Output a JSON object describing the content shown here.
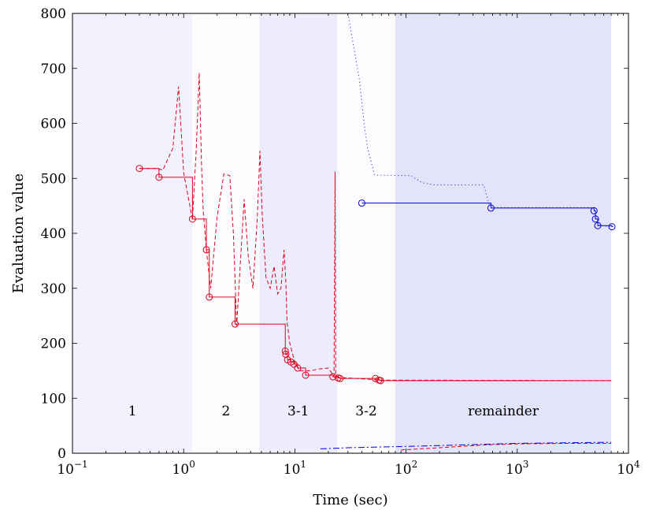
{
  "chart_data": {
    "type": "line",
    "xscale": "log",
    "xlim": [
      0.1,
      10000
    ],
    "ylim": [
      0,
      800
    ],
    "xlabel": "Time (sec)",
    "ylabel": "Evaluation value",
    "x_ticks": [
      {
        "value": 0.1,
        "base": "10",
        "exp": "−1"
      },
      {
        "value": 1,
        "base": "10",
        "exp": "0"
      },
      {
        "value": 10,
        "base": "10",
        "exp": "1"
      },
      {
        "value": 100,
        "base": "10",
        "exp": "2"
      },
      {
        "value": 1000,
        "base": "10",
        "exp": "3"
      },
      {
        "value": 10000,
        "base": "10",
        "exp": "4"
      }
    ],
    "y_ticks": [
      0,
      100,
      200,
      300,
      400,
      500,
      600,
      700,
      800
    ],
    "phases": [
      {
        "label": "1",
        "x0": 0.1,
        "x1": 1.2,
        "color": "#f2f2ff"
      },
      {
        "label": "2",
        "x0": 1.2,
        "x1": 4.8,
        "color": "#fcfcff"
      },
      {
        "label": "3-1",
        "x0": 4.8,
        "x1": 24,
        "color": "#ececfd"
      },
      {
        "label": "3-2",
        "x0": 24,
        "x1": 80,
        "color": "#fcfcff"
      },
      {
        "label": "remainder",
        "x0": 80,
        "x1": 7000,
        "color": "#e3e3fa"
      }
    ],
    "series": [
      {
        "style": "red-solid",
        "color": "#e0001b",
        "dash": "",
        "step": true,
        "markers": true,
        "points": [
          [
            0.4,
            518
          ],
          [
            0.6,
            502
          ],
          [
            1.2,
            426
          ],
          [
            1.6,
            370
          ],
          [
            1.7,
            284
          ],
          [
            2.9,
            235
          ],
          [
            8.2,
            186
          ],
          [
            8.3,
            180
          ],
          [
            8.6,
            170
          ],
          [
            9.2,
            166
          ],
          [
            9.8,
            162
          ],
          [
            10.6,
            155
          ],
          [
            12.5,
            142
          ],
          [
            22,
            139
          ],
          [
            24.5,
            137
          ],
          [
            25.5,
            136
          ],
          [
            53,
            136
          ],
          [
            57,
            133
          ],
          [
            59,
            132
          ],
          [
            7000,
            132
          ]
        ]
      },
      {
        "style": "red-dashed",
        "color": "#e0001b",
        "dash": "5,3",
        "step": false,
        "markers": false,
        "points": [
          [
            0.4,
            518
          ],
          [
            0.58,
            518
          ],
          [
            0.65,
            515
          ],
          [
            0.8,
            555
          ],
          [
            0.9,
            667
          ],
          [
            1.0,
            510
          ],
          [
            1.2,
            425
          ],
          [
            1.3,
            555
          ],
          [
            1.38,
            692
          ],
          [
            1.45,
            520
          ],
          [
            1.5,
            440
          ],
          [
            1.6,
            370
          ],
          [
            1.75,
            300
          ],
          [
            2.0,
            430
          ],
          [
            2.3,
            508
          ],
          [
            2.6,
            505
          ],
          [
            2.8,
            400
          ],
          [
            3.0,
            232
          ],
          [
            3.2,
            330
          ],
          [
            3.5,
            462
          ],
          [
            3.8,
            360
          ],
          [
            4.2,
            300
          ],
          [
            4.6,
            430
          ],
          [
            4.85,
            550
          ],
          [
            5.1,
            430
          ],
          [
            5.5,
            320
          ],
          [
            6.0,
            300
          ],
          [
            6.5,
            340
          ],
          [
            7.0,
            290
          ],
          [
            7.5,
            300
          ],
          [
            8.0,
            370
          ],
          [
            8.3,
            310
          ],
          [
            8.5,
            240
          ],
          [
            9.0,
            200
          ],
          [
            10,
            165
          ],
          [
            11,
            150
          ],
          [
            14,
            150
          ],
          [
            16,
            153
          ],
          [
            20,
            155
          ],
          [
            22.5,
            140
          ],
          [
            23,
            512
          ],
          [
            23.3,
            142
          ],
          [
            25,
            138
          ],
          [
            60,
            133
          ],
          [
            7000,
            132
          ]
        ]
      },
      {
        "style": "red-dashed-bottom",
        "color": "#e0001b",
        "dash": "5,3",
        "step": false,
        "markers": false,
        "points": [
          [
            90,
            6
          ],
          [
            200,
            10
          ],
          [
            500,
            15
          ],
          [
            1000,
            17
          ],
          [
            3000,
            18
          ],
          [
            7000,
            18
          ]
        ]
      },
      {
        "style": "blue-solid",
        "color": "#0000e0",
        "dash": "",
        "step": true,
        "markers": true,
        "points": [
          [
            40,
            455
          ],
          [
            580,
            446
          ],
          [
            4900,
            441
          ],
          [
            5050,
            426
          ],
          [
            5300,
            414
          ],
          [
            7100,
            412
          ],
          [
            7300,
            412
          ]
        ]
      },
      {
        "style": "blue-dotted",
        "color": "#3232d8",
        "dash": "1.2,3.2",
        "step": false,
        "markers": false,
        "points": [
          [
            30,
            800
          ],
          [
            38,
            680
          ],
          [
            42,
            600
          ],
          [
            45,
            555
          ],
          [
            50,
            520
          ],
          [
            52,
            506
          ],
          [
            110,
            505
          ],
          [
            140,
            492
          ],
          [
            180,
            488
          ],
          [
            500,
            488
          ],
          [
            560,
            452
          ],
          [
            600,
            447
          ],
          [
            4800,
            447
          ],
          [
            5000,
            442
          ],
          [
            5200,
            422
          ],
          [
            5500,
            414
          ],
          [
            7200,
            412
          ]
        ]
      },
      {
        "style": "blue-dashdot",
        "color": "#0000e0",
        "dash": "8,3,2,3",
        "step": false,
        "markers": false,
        "points": [
          [
            17,
            8
          ],
          [
            30,
            10
          ],
          [
            80,
            12
          ],
          [
            200,
            14
          ],
          [
            1000,
            18
          ],
          [
            7000,
            20
          ]
        ]
      }
    ]
  }
}
